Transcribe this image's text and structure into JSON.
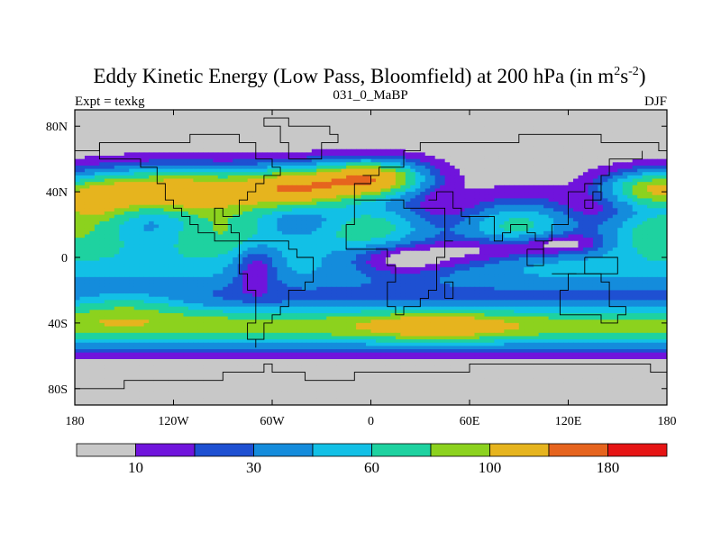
{
  "chart_data": {
    "type": "heatmap",
    "title": "Eddy Kinetic Energy (Low Pass, Bloomfield) at 200 hPa (in m",
    "title_units_sup1": "2",
    "title_units_mid": "s",
    "title_units_sup2": "-2",
    "title_units_end": ")",
    "left_label": "Expt = texkg",
    "center_label": "031_0_MaBP",
    "right_label": "DJF",
    "x_range": [
      -180,
      180
    ],
    "y_range": [
      -90,
      90
    ],
    "x_ticks": [
      {
        "value": -180,
        "label": "180"
      },
      {
        "value": -120,
        "label": "120W"
      },
      {
        "value": -60,
        "label": "60W"
      },
      {
        "value": 0,
        "label": "0"
      },
      {
        "value": 60,
        "label": "60E"
      },
      {
        "value": 120,
        "label": "120E"
      },
      {
        "value": 180,
        "label": "180"
      }
    ],
    "y_ticks": [
      {
        "value": 80,
        "label": "80N"
      },
      {
        "value": 40,
        "label": "40N"
      },
      {
        "value": 0,
        "label": "0"
      },
      {
        "value": -40,
        "label": "40S"
      },
      {
        "value": -80,
        "label": "80S"
      }
    ],
    "levels": [
      5,
      10,
      20,
      30,
      45,
      60,
      80,
      100,
      140,
      180
    ],
    "colors": [
      "#c8c8c8",
      "#7014dc",
      "#1e50d2",
      "#148cdc",
      "#12c0e6",
      "#1ed2a0",
      "#8cd21e",
      "#e6b41e",
      "#e6641e",
      "#e61414"
    ],
    "colorbar_labels": [
      {
        "index": 1,
        "label": "10"
      },
      {
        "index": 3,
        "label": "30"
      },
      {
        "index": 5,
        "label": "60"
      },
      {
        "index": 7,
        "label": "100"
      },
      {
        "index": 9,
        "label": "180"
      }
    ],
    "field_description": "Zonal bands: near-zero at poles, high (140-180+) storm tracks near 40N over Pacific and Atlantic, moderate maximum near 40S, minima (<10) over equatorial Africa/Indian Ocean and western Pacific"
  }
}
